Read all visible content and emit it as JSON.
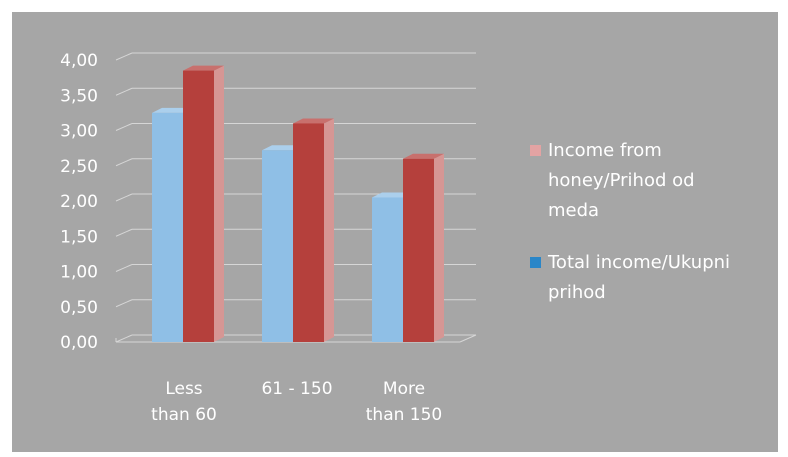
{
  "chart_data": {
    "type": "bar",
    "categories": [
      "Less than 60",
      "61 - 150",
      "More than 150"
    ],
    "category_lines": [
      [
        "Less",
        "than 60"
      ],
      [
        "61 - 150"
      ],
      [
        "More",
        "than 150"
      ]
    ],
    "series": [
      {
        "name": "Total income/Ukupni prihod",
        "values": [
          3.25,
          2.72,
          2.05
        ],
        "color": "#8fbfe6"
      },
      {
        "name": "Income from honey/Prihod od meda",
        "values": [
          3.85,
          3.1,
          2.6
        ],
        "color": "#b5403c"
      }
    ],
    "y_ticks": [
      "0,00",
      "0,50",
      "1,00",
      "1,50",
      "2,00",
      "2,50",
      "3,00",
      "3,50",
      "4,00"
    ],
    "ylim": [
      0,
      4
    ],
    "grid": true,
    "legend_position": "right",
    "legend": [
      {
        "lines": [
          "Income from",
          "honey/Prihod od",
          "meda"
        ],
        "color": "#e3a3a3",
        "series": "Income from honey/Prihod od meda"
      },
      {
        "lines": [
          "Total income/Ukupni",
          "prihod"
        ],
        "color": "#2a86c8",
        "series": "Total income/Ukupni prihod"
      }
    ]
  }
}
